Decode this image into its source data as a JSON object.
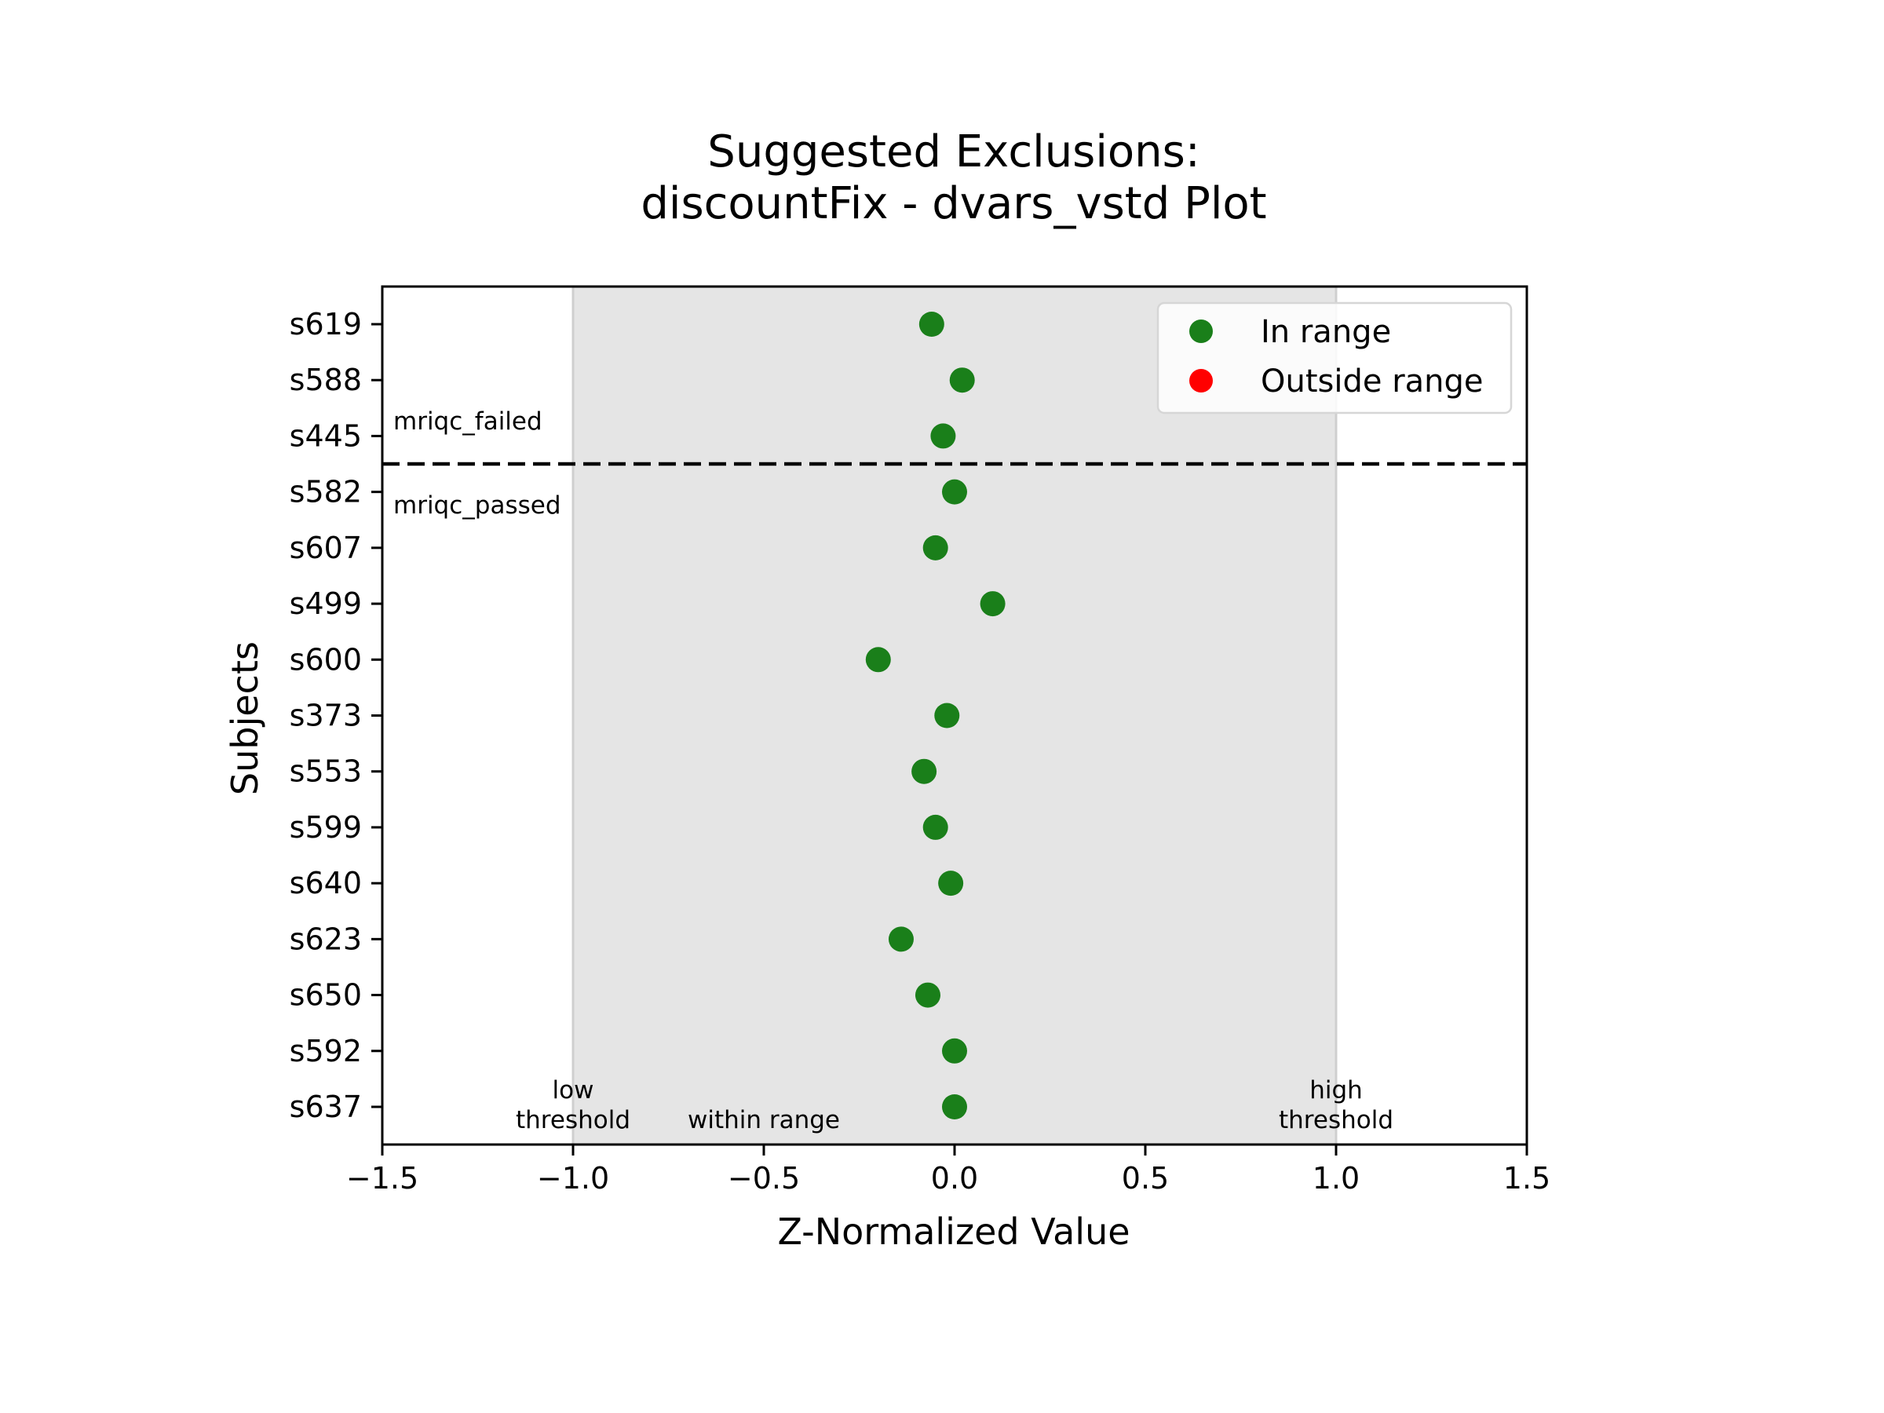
{
  "chart_data": {
    "type": "scatter",
    "title": [
      "Suggested Exclusions:",
      "discountFix - dvars_vstd Plot"
    ],
    "xlabel": "Z-Normalized Value",
    "ylabel": "Subjects",
    "xlim": [
      -1.5,
      1.5
    ],
    "xticks": [
      -1.5,
      -1.0,
      -0.5,
      0.0,
      0.5,
      1.0,
      1.5
    ],
    "xtick_labels": [
      "−1.5",
      "−1.0",
      "−0.5",
      "0.0",
      "0.5",
      "1.0",
      "1.5"
    ],
    "grid": false,
    "categories": [
      "s619",
      "s588",
      "s445",
      "s582",
      "s607",
      "s499",
      "s600",
      "s373",
      "s553",
      "s599",
      "s640",
      "s623",
      "s650",
      "s592",
      "s637"
    ],
    "series": [
      {
        "name": "In range",
        "color": "#1a7f1a",
        "points": [
          {
            "subject": "s619",
            "x": -0.06
          },
          {
            "subject": "s588",
            "x": 0.02
          },
          {
            "subject": "s445",
            "x": -0.03
          },
          {
            "subject": "s582",
            "x": 0.0
          },
          {
            "subject": "s607",
            "x": -0.05
          },
          {
            "subject": "s499",
            "x": 0.1
          },
          {
            "subject": "s600",
            "x": -0.2
          },
          {
            "subject": "s373",
            "x": -0.02
          },
          {
            "subject": "s553",
            "x": -0.08
          },
          {
            "subject": "s599",
            "x": -0.05
          },
          {
            "subject": "s640",
            "x": -0.01
          },
          {
            "subject": "s623",
            "x": -0.14
          },
          {
            "subject": "s650",
            "x": -0.07
          },
          {
            "subject": "s592",
            "x": 0.0
          },
          {
            "subject": "s637",
            "x": 0.0
          }
        ]
      },
      {
        "name": "Outside range",
        "color": "#ff0000",
        "points": []
      }
    ],
    "shaded_range": {
      "low": -1.0,
      "high": 1.0,
      "color": "#e5e5e5"
    },
    "group_divider": {
      "between": [
        "s445",
        "s582"
      ],
      "label_above": "mriqc_failed",
      "label_below": "mriqc_passed"
    },
    "annotations": [
      {
        "x": -1.0,
        "lines": [
          "low",
          "threshold"
        ]
      },
      {
        "x": -0.5,
        "lines": [
          "within range"
        ]
      },
      {
        "x": 1.0,
        "lines": [
          "high",
          "threshold"
        ]
      }
    ],
    "legend": {
      "placement": "top-right"
    }
  }
}
